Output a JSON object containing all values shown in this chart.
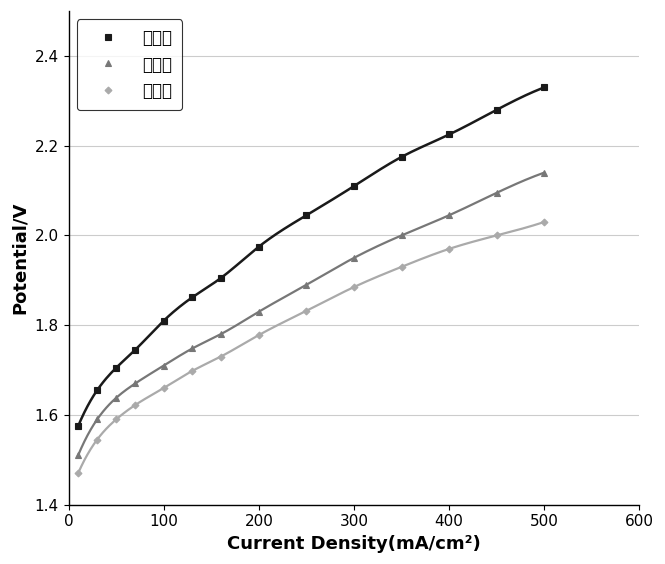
{
  "series": [
    {
      "label": "实例一",
      "color": "#1a1a1a",
      "linewidth": 1.8,
      "marker": "s",
      "markersize": 4.5,
      "x": [
        10,
        30,
        50,
        70,
        100,
        130,
        160,
        200,
        250,
        300,
        350,
        400,
        450,
        500
      ],
      "y": [
        1.575,
        1.655,
        1.705,
        1.745,
        1.81,
        1.862,
        1.905,
        1.975,
        2.045,
        2.11,
        2.175,
        2.225,
        2.28,
        2.33
      ]
    },
    {
      "label": "实例二",
      "color": "#777777",
      "linewidth": 1.6,
      "marker": "^",
      "markersize": 4.5,
      "x": [
        10,
        30,
        50,
        70,
        100,
        130,
        160,
        200,
        250,
        300,
        350,
        400,
        450,
        500
      ],
      "y": [
        1.51,
        1.59,
        1.638,
        1.67,
        1.71,
        1.748,
        1.78,
        1.83,
        1.89,
        1.95,
        2.0,
        2.045,
        2.095,
        2.14
      ]
    },
    {
      "label": "实例三",
      "color": "#aaaaaa",
      "linewidth": 1.6,
      "marker": "D",
      "markersize": 3.5,
      "x": [
        10,
        30,
        50,
        70,
        100,
        130,
        160,
        200,
        250,
        300,
        350,
        400,
        450,
        500
      ],
      "y": [
        1.47,
        1.545,
        1.59,
        1.622,
        1.66,
        1.698,
        1.73,
        1.778,
        1.832,
        1.885,
        1.93,
        1.97,
        2.0,
        2.03
      ]
    }
  ],
  "xlabel": "Current Density(mA/cm²)",
  "ylabel": "Potential/V",
  "xlim": [
    0,
    600
  ],
  "ylim": [
    1.4,
    2.5
  ],
  "xticks": [
    0,
    100,
    200,
    300,
    400,
    500,
    600
  ],
  "yticks": [
    1.4,
    1.6,
    1.8,
    2.0,
    2.2,
    2.4
  ],
  "grid_color": "#cccccc",
  "legend_fontsize": 12,
  "xlabel_fontsize": 13,
  "ylabel_fontsize": 13,
  "tick_fontsize": 11,
  "background_color": "#ffffff",
  "fig_width": 6.65,
  "fig_height": 5.64,
  "dpi": 100
}
